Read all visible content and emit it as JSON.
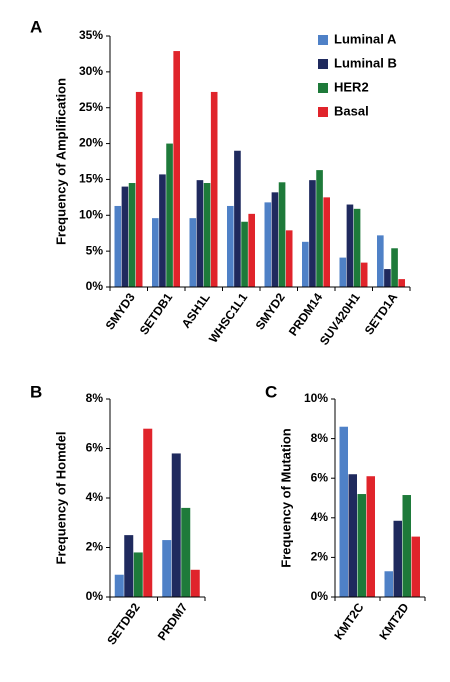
{
  "chart_data": [
    {
      "type": "bar",
      "panel": "A",
      "ylabel": "Frequency of Amplification",
      "categories": [
        "SMYD3",
        "SETDB1",
        "ASH1L",
        "WHSC1L1",
        "SMYD2",
        "PRDM14",
        "SUV420H1",
        "SETD1A"
      ],
      "series": [
        {
          "name": "Luminal A",
          "color": "#4f81c7",
          "values": [
            11.3,
            9.6,
            9.6,
            11.3,
            11.8,
            6.3,
            4.1,
            7.2
          ]
        },
        {
          "name": "Luminal B",
          "color": "#1f2a5e",
          "values": [
            14,
            15.7,
            14.9,
            19,
            13.2,
            14.9,
            11.5,
            2.5
          ]
        },
        {
          "name": "HER2",
          "color": "#1e7a3a",
          "values": [
            14.5,
            20,
            14.5,
            9.1,
            14.6,
            16.3,
            10.9,
            5.4
          ]
        },
        {
          "name": "Basal",
          "color": "#e0242b",
          "values": [
            27.2,
            32.9,
            27.2,
            10.2,
            7.9,
            12.5,
            3.4,
            1.1
          ]
        }
      ],
      "ylim": [
        0,
        35
      ],
      "yticks": [
        {
          "value": 0,
          "label": "0%"
        },
        {
          "value": 5,
          "label": "5%"
        },
        {
          "value": 10,
          "label": "10%"
        },
        {
          "value": 15,
          "label": "15%"
        },
        {
          "value": 20,
          "label": "20%"
        },
        {
          "value": 25,
          "label": "25%"
        },
        {
          "value": 30,
          "label": "30%"
        },
        {
          "value": 35,
          "label": "35%"
        }
      ],
      "legend": "upper right"
    },
    {
      "type": "bar",
      "panel": "B",
      "ylabel": "Frequency of Homdel",
      "categories": [
        "SETDB2",
        "PRDM7"
      ],
      "series": [
        {
          "color": "#4f81c7",
          "values": [
            0.9,
            2.3
          ]
        },
        {
          "color": "#1f2a5e",
          "values": [
            2.5,
            5.8
          ]
        },
        {
          "color": "#1e7a3a",
          "values": [
            1.8,
            3.6
          ]
        },
        {
          "color": "#e0242b",
          "values": [
            6.8,
            1.1
          ]
        }
      ],
      "ylim": [
        0,
        8
      ],
      "yticks": [
        {
          "value": 0,
          "label": "0%"
        },
        {
          "value": 2,
          "label": "2%"
        },
        {
          "value": 4,
          "label": "4%"
        },
        {
          "value": 6,
          "label": "6%"
        },
        {
          "value": 8,
          "label": "8%"
        }
      ]
    },
    {
      "type": "bar",
      "panel": "C",
      "ylabel": "Frequency of Mutation",
      "categories": [
        "KMT2C",
        "KMT2D"
      ],
      "series": [
        {
          "color": "#4f81c7",
          "values": [
            8.6,
            1.3
          ]
        },
        {
          "color": "#1f2a5e",
          "values": [
            6.2,
            3.85
          ]
        },
        {
          "color": "#1e7a3a",
          "values": [
            5.2,
            5.15
          ]
        },
        {
          "color": "#e0242b",
          "values": [
            6.1,
            3.05
          ]
        }
      ],
      "ylim": [
        0,
        10
      ],
      "yticks": [
        {
          "value": 0,
          "label": "0%"
        },
        {
          "value": 2,
          "label": "2%"
        },
        {
          "value": 4,
          "label": "4%"
        },
        {
          "value": 6,
          "label": "6%"
        },
        {
          "value": 8,
          "label": "8%"
        },
        {
          "value": 10,
          "label": "10%"
        }
      ]
    }
  ]
}
